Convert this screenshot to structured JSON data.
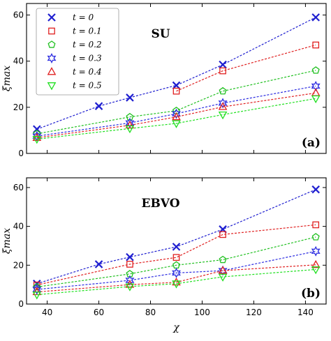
{
  "chart_data": [
    {
      "type": "line",
      "panel_title": "SU",
      "panel_tag": "(a)",
      "xlabel": "χ",
      "ylabel": "ξmax",
      "xlim": [
        32,
        148
      ],
      "ylim": [
        0,
        65
      ],
      "xticks": [
        40,
        60,
        80,
        100,
        120,
        140
      ],
      "yticks": [
        0,
        20,
        40,
        60
      ],
      "show_xtick_labels": false,
      "legend": "top-left",
      "x": [
        36,
        60,
        72,
        90,
        108,
        144
      ],
      "series": [
        {
          "name": "t = 0",
          "values": [
            10.5,
            20.5,
            24.2,
            29.5,
            38.5,
            59.0
          ]
        },
        {
          "name": "t = 0.1",
          "values": [
            null,
            null,
            null,
            27.0,
            35.8,
            47.0
          ]
        },
        {
          "name": "t = 0.2",
          "values": [
            8.5,
            null,
            15.8,
            18.5,
            27.0,
            36.0
          ]
        },
        {
          "name": "t = 0.3",
          "values": [
            7.5,
            null,
            13.2,
            17.2,
            21.8,
            29.2
          ]
        },
        {
          "name": "t = 0.4",
          "values": [
            6.8,
            null,
            12.2,
            15.8,
            20.2,
            26.2
          ]
        },
        {
          "name": "t = 0.5",
          "values": [
            6.2,
            null,
            10.8,
            13.0,
            16.8,
            23.8
          ]
        }
      ]
    },
    {
      "type": "line",
      "panel_title": "EBVO",
      "panel_tag": "(b)",
      "xlabel": "χ",
      "ylabel": "ξmax",
      "xlim": [
        32,
        148
      ],
      "ylim": [
        0,
        65
      ],
      "xticks": [
        40,
        60,
        80,
        100,
        120,
        140
      ],
      "yticks": [
        0,
        20,
        40,
        60
      ],
      "show_xtick_labels": true,
      "x": [
        36,
        60,
        72,
        90,
        108,
        144
      ],
      "series": [
        {
          "name": "t = 0",
          "values": [
            10.5,
            20.5,
            24.2,
            29.5,
            38.5,
            59.0
          ]
        },
        {
          "name": "t = 0.1",
          "values": [
            9.8,
            null,
            20.5,
            24.0,
            35.8,
            40.8
          ]
        },
        {
          "name": "t = 0.2",
          "values": [
            8.8,
            null,
            15.5,
            20.0,
            22.8,
            34.5
          ]
        },
        {
          "name": "t = 0.3",
          "values": [
            7.5,
            null,
            12.2,
            16.0,
            17.2,
            27.2
          ]
        },
        {
          "name": "t = 0.4",
          "values": [
            6.2,
            null,
            10.0,
            11.2,
            17.2,
            20.2
          ]
        },
        {
          "name": "t = 0.5",
          "values": [
            4.8,
            null,
            9.0,
            10.5,
            14.0,
            17.8
          ]
        }
      ]
    }
  ],
  "series_styles": [
    {
      "color": "#1f1fd0",
      "marker": "x"
    },
    {
      "color": "#e02020",
      "marker": "square"
    },
    {
      "color": "#20c020",
      "marker": "pentagon"
    },
    {
      "color": "#2a2ae0",
      "marker": "star"
    },
    {
      "color": "#e02020",
      "marker": "triangle-up"
    },
    {
      "color": "#20e020",
      "marker": "triangle-down"
    }
  ]
}
